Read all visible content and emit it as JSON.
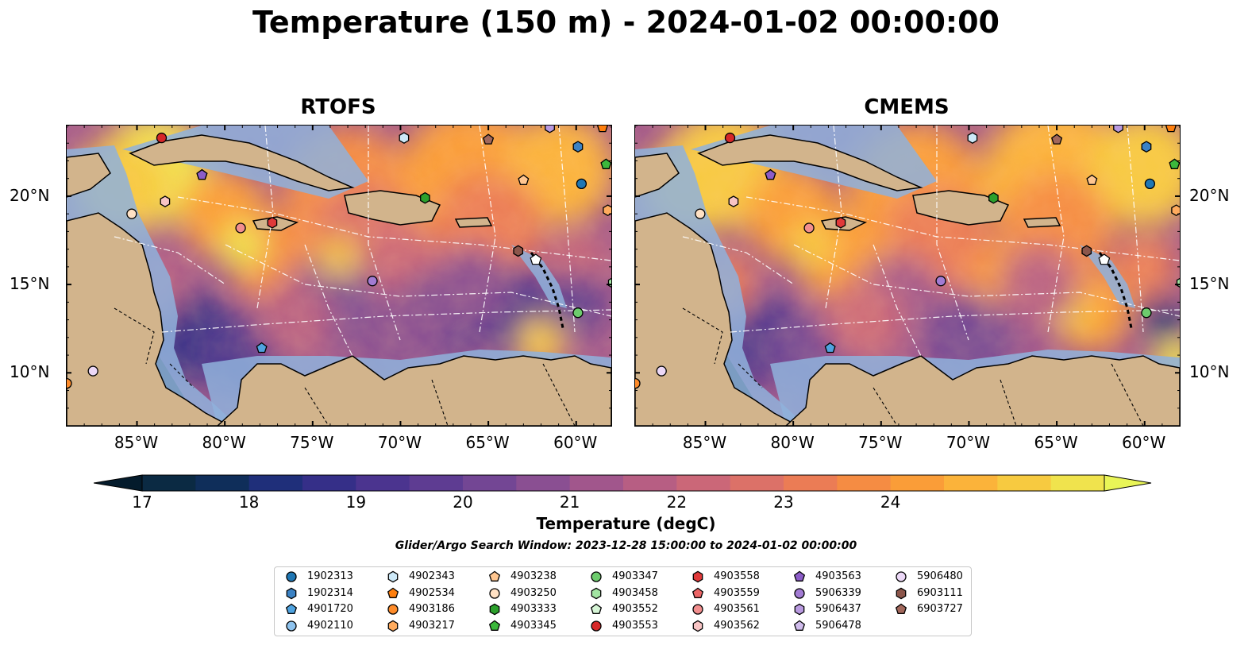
{
  "figure": {
    "title": "Temperature (150 m) - 2024-01-02 00:00:00",
    "search_window": "Glider/Argo Search Window: 2023-12-28 15:00:00 to 2024-01-02 00:00:00"
  },
  "panels": [
    {
      "title": "RTOFS"
    },
    {
      "title": "CMEMS"
    }
  ],
  "axes": {
    "lon_ticks": [
      "85°W",
      "80°W",
      "75°W",
      "70°W",
      "65°W",
      "60°W"
    ],
    "lat_ticks": [
      "20°N",
      "15°N",
      "10°N"
    ]
  },
  "colorbar": {
    "label": "Temperature (degC)",
    "ticks": [
      "17",
      "18",
      "19",
      "20",
      "21",
      "22",
      "23",
      "24"
    ],
    "colors": [
      "#0b2a43",
      "#0f2e5a",
      "#1f2f7a",
      "#352f88",
      "#4b348f",
      "#5e3c92",
      "#734694",
      "#8a4f92",
      "#a1568c",
      "#b75e83",
      "#cb6778",
      "#dc7168",
      "#eb7c55",
      "#f58c43",
      "#fa9d38",
      "#fbb33a",
      "#f7ca40",
      "#f0e34d"
    ],
    "extend_low": "#041b2c",
    "extend_high": "#e9f557"
  },
  "map_colors": {
    "land": "#d2b48c",
    "shelf": "#8fb1dc",
    "deep_low": "#082232"
  },
  "legend": [
    {
      "label": "1902313",
      "color": "#1f77b4",
      "shape": "circle"
    },
    {
      "label": "1902314",
      "color": "#3b82c4",
      "shape": "hexagon"
    },
    {
      "label": "4901720",
      "color": "#4fa3e0",
      "shape": "pentagon"
    },
    {
      "label": "4902110",
      "color": "#8ec3ee",
      "shape": "circle"
    },
    {
      "label": "4902343",
      "color": "#cde9f8",
      "shape": "hexagon"
    },
    {
      "label": "4902534",
      "color": "#ff7f0e",
      "shape": "pentagon"
    },
    {
      "label": "4903186",
      "color": "#ff8c2a",
      "shape": "circle"
    },
    {
      "label": "4903217",
      "color": "#ffab5e",
      "shape": "hexagon"
    },
    {
      "label": "4903238",
      "color": "#ffc690",
      "shape": "pentagon"
    },
    {
      "label": "4903250",
      "color": "#ffe1c4",
      "shape": "circle"
    },
    {
      "label": "4903333",
      "color": "#2ca02c",
      "shape": "hexagon"
    },
    {
      "label": "4903345",
      "color": "#3cb83c",
      "shape": "pentagon"
    },
    {
      "label": "4903347",
      "color": "#6dcc6d",
      "shape": "circle"
    },
    {
      "label": "4903458",
      "color": "#a3e5a3",
      "shape": "hexagon"
    },
    {
      "label": "4903552",
      "color": "#d6f5d6",
      "shape": "pentagon"
    },
    {
      "label": "4903553",
      "color": "#d62728",
      "shape": "circle"
    },
    {
      "label": "4903558",
      "color": "#e0393a",
      "shape": "hexagon"
    },
    {
      "label": "4903559",
      "color": "#ec6566",
      "shape": "pentagon"
    },
    {
      "label": "4903561",
      "color": "#f28e8e",
      "shape": "circle"
    },
    {
      "label": "4903562",
      "color": "#f8c4c4",
      "shape": "hexagon"
    },
    {
      "label": "4903563",
      "color": "#8c5cc8",
      "shape": "pentagon"
    },
    {
      "label": "5906339",
      "color": "#a27bd3",
      "shape": "circle"
    },
    {
      "label": "5906437",
      "color": "#b99ae0",
      "shape": "hexagon"
    },
    {
      "label": "5906478",
      "color": "#d0bcec",
      "shape": "pentagon"
    },
    {
      "label": "5906480",
      "color": "#ecd8f7",
      "shape": "circle"
    },
    {
      "label": "6903111",
      "color": "#8c564b",
      "shape": "hexagon"
    },
    {
      "label": "6903727",
      "color": "#a2685c",
      "shape": "pentagon"
    }
  ],
  "floats": [
    {
      "id": "1902313",
      "lon": -59.7,
      "lat": 20.7
    },
    {
      "id": "1902314",
      "lon": -59.9,
      "lat": 22.8
    },
    {
      "id": "4901720",
      "lon": -77.9,
      "lat": 11.4
    },
    {
      "id": "4902343",
      "lon": -69.8,
      "lat": 23.3
    },
    {
      "id": "4902534",
      "lon": -58.5,
      "lat": 23.9
    },
    {
      "id": "4903186",
      "lon": -89.0,
      "lat": 9.4
    },
    {
      "id": "4903217",
      "lon": -58.2,
      "lat": 19.2
    },
    {
      "id": "4903238",
      "lon": -63.0,
      "lat": 20.9
    },
    {
      "id": "4903333",
      "lon": -68.6,
      "lat": 19.9
    },
    {
      "id": "4903345",
      "lon": -58.3,
      "lat": 21.8
    },
    {
      "id": "4903347",
      "lon": -59.9,
      "lat": 13.4
    },
    {
      "id": "4903458",
      "lon": -57.9,
      "lat": 15.1
    },
    {
      "id": "4903553",
      "lon": -83.6,
      "lat": 23.3
    },
    {
      "id": "4903558",
      "lon": -77.3,
      "lat": 18.5
    },
    {
      "id": "4903559",
      "lon": -81.3,
      "lat": 21.2
    },
    {
      "id": "4903561",
      "lon": -79.1,
      "lat": 18.2
    },
    {
      "id": "4903562",
      "lon": -83.4,
      "lat": 19.7
    },
    {
      "id": "4903563",
      "lon": -81.3,
      "lat": 21.2
    },
    {
      "id": "5906339",
      "lon": -71.6,
      "lat": 15.2
    },
    {
      "id": "5906480",
      "lon": -87.5,
      "lat": 10.1
    },
    {
      "id": "6903111",
      "lon": -63.3,
      "lat": 16.9
    },
    {
      "id": "6903727",
      "lon": -65.0,
      "lat": 23.2
    },
    {
      "id": "5906437",
      "lon": -61.5,
      "lat": 23.9
    },
    {
      "id": "4903250",
      "lon": -85.3,
      "lat": 19.0
    }
  ]
}
